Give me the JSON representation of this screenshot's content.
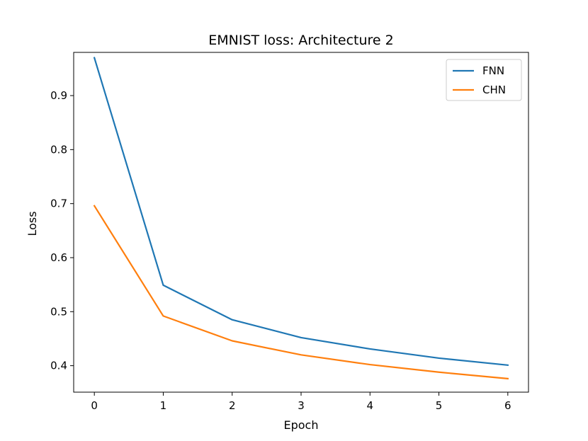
{
  "chart_data": {
    "type": "line",
    "title": "EMNIST loss: Architecture 2",
    "xlabel": "Epoch",
    "ylabel": "Loss",
    "x": [
      0,
      1,
      2,
      3,
      4,
      5,
      6
    ],
    "xticks": [
      "0",
      "1",
      "2",
      "3",
      "4",
      "5",
      "6"
    ],
    "yticks": [
      "0.4",
      "0.5",
      "0.6",
      "0.7",
      "0.8",
      "0.9"
    ],
    "ytick_values": [
      0.4,
      0.5,
      0.6,
      0.7,
      0.8,
      0.9
    ],
    "xlim": [
      -0.3,
      6.3
    ],
    "ylim": [
      0.351,
      0.98
    ],
    "grid": false,
    "legend_position": "top-right",
    "series": [
      {
        "name": "FNN",
        "color": "#1f77b4",
        "values": [
          0.97,
          0.549,
          0.485,
          0.452,
          0.431,
          0.414,
          0.401
        ]
      },
      {
        "name": "CHN",
        "color": "#ff7f0e",
        "values": [
          0.696,
          0.492,
          0.446,
          0.42,
          0.402,
          0.388,
          0.376
        ]
      }
    ]
  }
}
